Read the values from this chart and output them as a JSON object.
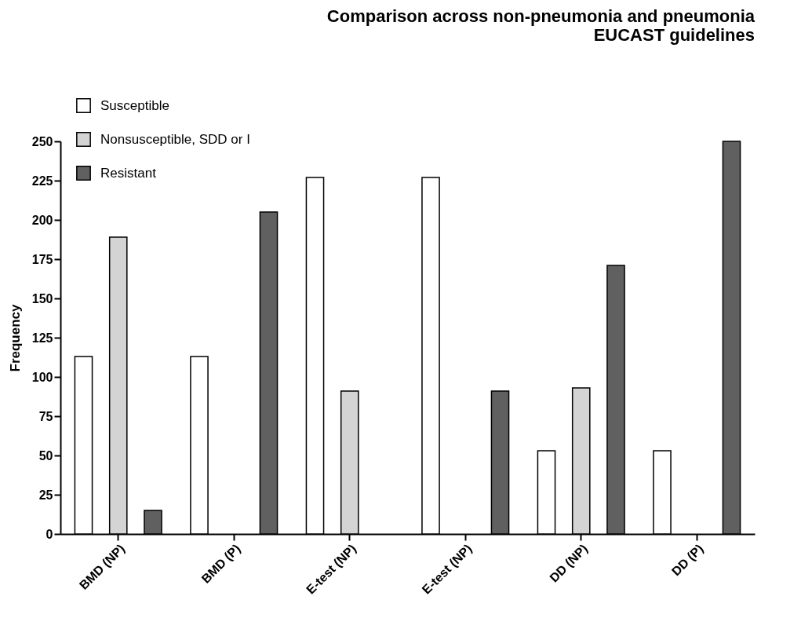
{
  "chart_data": {
    "type": "bar",
    "title": [
      "Comparison across non-pneumonia and pneumonia",
      "EUCAST guidelines"
    ],
    "ylabel": "Frequency",
    "categories": [
      "BMD (NP)",
      "BMD (P)",
      "E-test (NP)",
      "E-test (NP)",
      "DD (NP)",
      "DD (P)"
    ],
    "series": [
      {
        "name": "Susceptible",
        "color": "#ffffff",
        "values": [
          113,
          113,
          227,
          227,
          53,
          53
        ]
      },
      {
        "name": "Nonsusceptible, SDD or I",
        "color": "#d4d4d4",
        "values": [
          189,
          0,
          91,
          0,
          93,
          0
        ]
      },
      {
        "name": "Resistant",
        "color": "#606060",
        "values": [
          15,
          205,
          0,
          91,
          171,
          250
        ]
      }
    ],
    "ylim": [
      0,
      250
    ],
    "yticks": [
      0,
      25,
      50,
      75,
      100,
      125,
      150,
      175,
      200,
      225,
      250
    ],
    "grid": false,
    "legend": "top left"
  }
}
